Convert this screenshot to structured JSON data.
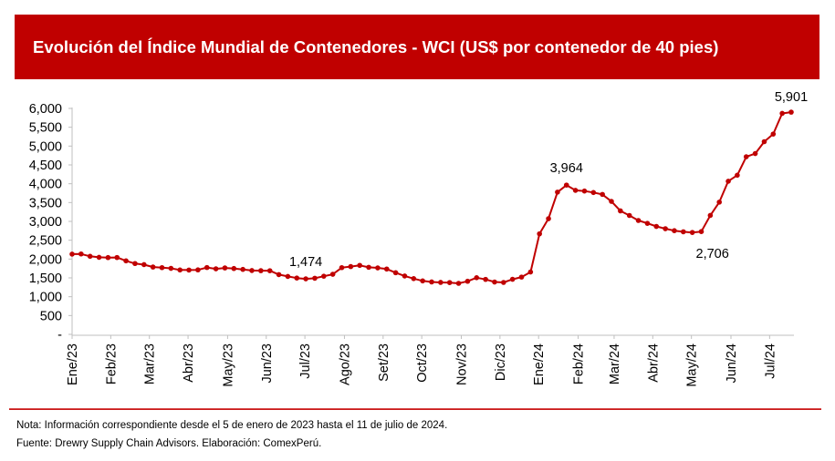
{
  "header": {
    "title": "Evolución del Índice Mundial de Contenedores - WCI (US$ por contenedor de 40 pies)"
  },
  "footer": {
    "note": "Nota: Información correspondiente desde el 5 de enero de 2023 hasta el 11 de julio de 2024.",
    "source": "Fuente: Drewry Supply Chain Advisors. Elaboración: ComexPerú."
  },
  "colors": {
    "brand": "#c00000",
    "line": "#c00000",
    "axis": "#bfbfbf"
  },
  "chart_data": {
    "type": "line",
    "title": "Evolución del Índice Mundial de Contenedores - WCI (US$ por contenedor de 40 pies)",
    "xlabel": "",
    "ylabel": "",
    "ylim": [
      0,
      6000
    ],
    "grid": false,
    "legend": "none",
    "y_ticks": [
      0,
      500,
      1000,
      1500,
      2000,
      2500,
      3000,
      3500,
      4000,
      4500,
      5000,
      5500,
      6000
    ],
    "y_tick_labels": [
      "-",
      "500",
      "1,000",
      "1,500",
      "2,000",
      "2,500",
      "3,000",
      "3,500",
      "4,000",
      "4,500",
      "5,000",
      "5,500",
      "6,000"
    ],
    "x_tick_labels": [
      "Ene/23",
      "Feb/23",
      "Mar/23",
      "Abr/23",
      "May/23",
      "Jun/23",
      "Jul/23",
      "Ago/23",
      "Set/23",
      "Oct/23",
      "Nov/23",
      "Dic/23",
      "Ene/24",
      "Feb/24",
      "Mar/24",
      "Abr/24",
      "May/24",
      "Jun/24",
      "Jul/24"
    ],
    "x_tick_index": [
      0,
      4.3,
      8.6,
      12.9,
      17.3,
      21.6,
      25.9,
      30.3,
      34.6,
      38.9,
      43.3,
      47.6,
      51.9,
      56.3,
      60.3,
      64.6,
      68.9,
      73.3,
      77.6
    ],
    "series": [
      {
        "name": "WCI",
        "values": [
          2131,
          2135,
          2073,
          2046,
          2039,
          2041,
          1952,
          1881,
          1852,
          1788,
          1772,
          1753,
          1710,
          1708,
          1712,
          1775,
          1740,
          1764,
          1749,
          1725,
          1695,
          1691,
          1690,
          1587,
          1538,
          1495,
          1474,
          1490,
          1544,
          1595,
          1772,
          1800,
          1832,
          1781,
          1765,
          1735,
          1637,
          1550,
          1480,
          1420,
          1392,
          1380,
          1375,
          1355,
          1410,
          1505,
          1460,
          1390,
          1379,
          1462,
          1521,
          1656,
          2670,
          3072,
          3777,
          3964,
          3824,
          3806,
          3767,
          3717,
          3531,
          3279,
          3157,
          3024,
          2948,
          2866,
          2806,
          2754,
          2724,
          2706,
          2729,
          3159,
          3511,
          4066,
          4226,
          4716,
          4801,
          5117,
          5319,
          5868,
          5901
        ]
      }
    ],
    "annotations": [
      {
        "index": 26,
        "label": "1,474"
      },
      {
        "index": 55,
        "label": "3,964"
      },
      {
        "index": 69,
        "label": "2,706"
      },
      {
        "index": 80,
        "label": "5,901"
      }
    ]
  }
}
